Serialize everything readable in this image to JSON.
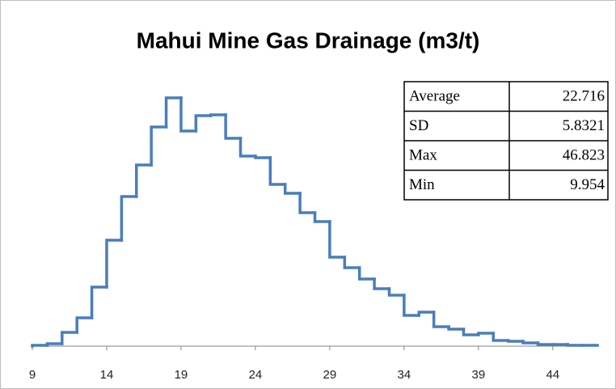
{
  "chart_data": {
    "type": "histogram",
    "title": "Mahui Mine Gas Drainage (m3/t)",
    "bins": [
      9,
      10,
      11,
      12,
      13,
      14,
      15,
      16,
      17,
      18,
      19,
      20,
      21,
      22,
      23,
      24,
      25,
      26,
      27,
      28,
      29,
      30,
      31,
      32,
      33,
      34,
      35,
      36,
      37,
      38,
      39,
      40,
      41,
      42,
      43,
      44,
      45,
      46,
      47
    ],
    "values": [
      1,
      3,
      17,
      35,
      73,
      131,
      185,
      224,
      271,
      307,
      266,
      285,
      286,
      257,
      235,
      233,
      200,
      189,
      165,
      154,
      110,
      97,
      83,
      71,
      63,
      38,
      42,
      24,
      21,
      14,
      16,
      7,
      6,
      4,
      2,
      2,
      1,
      1
    ],
    "color": "#4a7ebb",
    "xlim": [
      9,
      47
    ],
    "xticks": [
      9,
      14,
      19,
      24,
      29,
      34,
      39,
      44
    ],
    "ylim": [
      0,
      330
    ],
    "table": {
      "rows": [
        [
          "Average",
          22.716
        ],
        [
          "SD",
          5.8321
        ],
        [
          "Max",
          46.823
        ],
        [
          "Min",
          9.954
        ]
      ]
    }
  }
}
